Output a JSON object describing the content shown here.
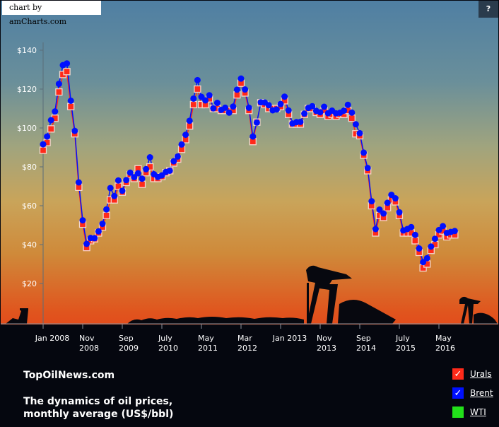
{
  "header": {
    "credit": "chart by amCharts.com",
    "help_label": "?"
  },
  "footer": {
    "site": "TopOilNews.com",
    "subtitle_line1": "The dynamics of oil prices,",
    "subtitle_line2": "monthly average (US$/bbl)"
  },
  "legend": [
    {
      "label": "Urals",
      "color": "#ff2a1a",
      "checked": true,
      "check": "✓"
    },
    {
      "label": "Brent",
      "color": "#0010ff",
      "checked": true,
      "check": "✓"
    },
    {
      "label": "WTI",
      "color": "#22e01a",
      "checked": false,
      "check": ""
    }
  ],
  "chart_data": {
    "type": "line",
    "title": "The dynamics of oil prices, monthly average (US$/bbl)",
    "xlabel": "",
    "ylabel": "US$/bbl",
    "ylim": [
      0,
      150
    ],
    "y_ticks": [
      "$20",
      "$40",
      "$60",
      "$80",
      "$100",
      "$120",
      "$140"
    ],
    "x_ticks": [
      "Jan 2008",
      "Nov 2008",
      "Sep 2009",
      "July 2010",
      "May 2011",
      "Mar 2012",
      "Jan 2013",
      "Nov 2013",
      "Sep 2014",
      "July 2015",
      "May 2016"
    ],
    "grid": false,
    "legend_position": "bottom-right",
    "x_start": "Jan 2008",
    "x_step": "1 month",
    "series": [
      {
        "name": "Brent",
        "color": "#0010ff",
        "marker": "circle",
        "values": [
          91.6,
          95.6,
          104,
          108.5,
          122.7,
          132.3,
          133.2,
          114,
          98.5,
          72,
          52.5,
          40.4,
          43.4,
          43.3,
          46.8,
          50.7,
          58.1,
          69.1,
          65,
          73,
          67.7,
          73.2,
          77,
          74.7,
          76.7,
          73.9,
          78.8,
          84.9,
          76.2,
          74.8,
          75.6,
          77.4,
          78,
          82.9,
          85.3,
          91.5,
          96.5,
          103.7,
          115.1,
          124.6,
          116,
          114.2,
          116.8,
          110.1,
          112.9,
          109.3,
          110.4,
          107.9,
          111,
          119.7,
          125.4,
          119.8,
          110.4,
          95.6,
          102.8,
          113.2,
          113.1,
          111.7,
          109.1,
          109.5,
          112.3,
          116.1,
          109,
          102.3,
          103,
          103.1,
          107.4,
          110.3,
          111.2,
          108.8,
          108.1,
          110.9,
          107.6,
          108.9,
          107.5,
          107.8,
          108.9,
          111.9,
          107.9,
          101.9,
          97.3,
          87.3,
          79.4,
          62.3,
          48,
          58,
          56,
          61.5,
          65.6,
          63.8,
          56.6,
          47.3,
          48,
          49,
          45,
          38,
          31,
          33,
          39,
          43,
          47.5,
          49.5,
          46,
          46.5,
          47
        ]
      },
      {
        "name": "Urals",
        "color": "#ff2a1a",
        "marker": "square",
        "values": [
          88.5,
          92.5,
          99.5,
          105,
          118.5,
          127.5,
          129,
          111,
          97,
          69.5,
          50.5,
          38.5,
          42,
          43,
          46,
          49,
          55,
          63,
          63,
          70,
          67,
          72,
          76,
          74,
          79,
          71,
          77,
          80,
          74,
          74,
          75,
          77,
          78,
          82,
          84,
          89,
          94,
          101,
          112,
          120,
          112,
          112,
          115,
          110,
          110,
          109,
          109,
          109,
          109,
          117,
          123,
          118,
          109,
          93,
          103,
          113,
          112,
          110,
          110,
          110,
          111,
          114,
          107,
          102,
          102,
          102,
          107,
          110,
          110,
          108,
          107,
          109,
          106,
          107,
          106,
          107,
          107,
          109,
          105,
          97,
          96,
          86,
          78,
          60,
          46,
          55,
          54,
          59,
          63,
          62,
          55,
          46,
          46,
          46,
          42,
          36,
          28,
          30,
          37,
          40,
          45,
          47,
          44,
          45,
          45
        ]
      },
      {
        "name": "WTI",
        "color": "#22e01a",
        "marker": "none",
        "values": []
      }
    ]
  }
}
